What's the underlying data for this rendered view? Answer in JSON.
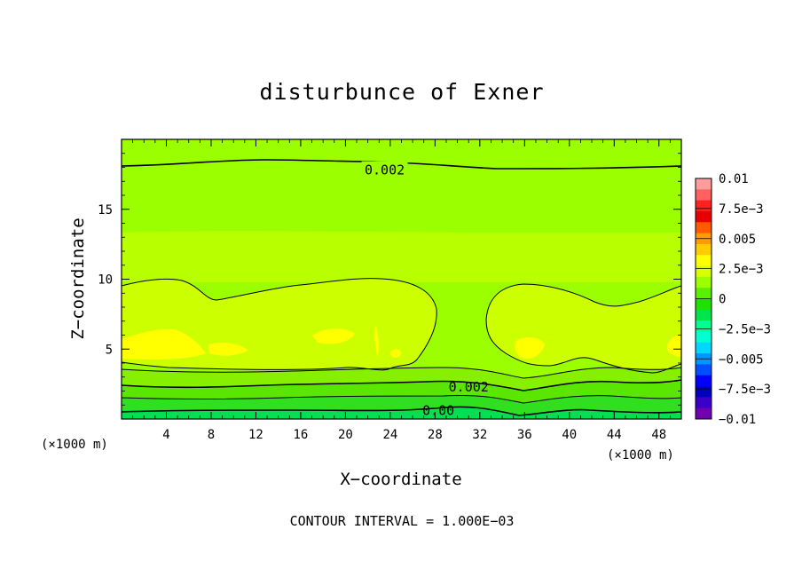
{
  "chart_data": {
    "type": "heatmap",
    "title": "disturbunce of Exner",
    "xlabel": "X−coordinate",
    "ylabel": "Z−coordinate",
    "x_unit": "(×1000 m)",
    "y_unit": "(×1000 m)",
    "x_ticks": [
      4,
      8,
      12,
      16,
      20,
      24,
      28,
      32,
      36,
      40,
      44,
      48
    ],
    "y_ticks": [
      5,
      10,
      15
    ],
    "xlim": [
      0,
      50
    ],
    "ylim": [
      0,
      20
    ],
    "footer": "CONTOUR INTERVAL = 1.000E−03",
    "colorbar": {
      "labels": [
        "0.01",
        "7.5e−3",
        "0.005",
        "2.5e−3",
        "0",
        "−2.5e−3",
        "−0.005",
        "−7.5e−3",
        "−0.01"
      ],
      "label_values": [
        0.01,
        0.0075,
        0.005,
        0.0025,
        0,
        -0.0025,
        -0.005,
        -0.0075,
        -0.01
      ],
      "colors": [
        "#ff9c9c",
        "#ff6060",
        "#ff2020",
        "#e80000",
        "#ff5a00",
        "#ff9a00",
        "#ffcc00",
        "#ffff00",
        "#d8ff00",
        "#9cff00",
        "#5af000",
        "#20e000",
        "#00e64a",
        "#00ff90",
        "#00ffd2",
        "#00d8ff",
        "#0096ff",
        "#0050ff",
        "#0000ff",
        "#0000c0",
        "#3a00c8",
        "#7000b0"
      ],
      "range": [
        -0.01,
        0.01
      ]
    },
    "field_colors": {
      "upper": "#9cff00",
      "band_mid": "#b8ff00",
      "mid": "#ccff00",
      "max": "#ffff00",
      "low1": "#86f000",
      "low2": "#5ae600",
      "low3": "#30e020",
      "low4": "#00e050"
    },
    "contour_labels": [
      {
        "text": "0.002",
        "x": 23.5,
        "y": 17.8
      },
      {
        "text": "0.002",
        "x": 31.0,
        "y": 2.3
      },
      {
        "text": "0.00",
        "x": 28.3,
        "y": 0.6
      }
    ]
  }
}
